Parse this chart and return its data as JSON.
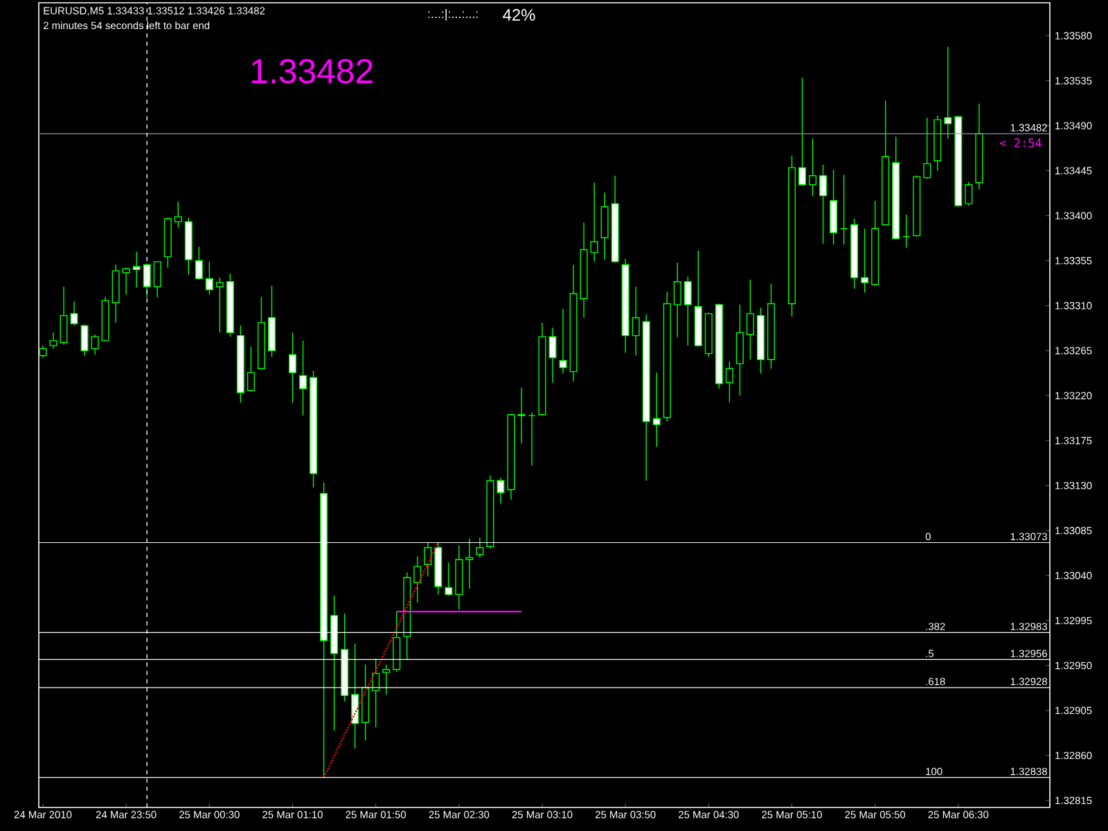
{
  "chart_data": {
    "type": "candlestick",
    "title": "EURUSD,M5  1.33433 1.33512 1.33426 1.33482",
    "subtitle": "2 minutes 54 seconds left to bar end",
    "color": "#00ff00",
    "x": [
      "2010-03-24T23:10",
      "2010-03-24T23:15",
      "2010-03-24T23:20",
      "2010-03-24T23:25",
      "2010-03-24T23:30",
      "2010-03-24T23:35",
      "2010-03-24T23:40",
      "2010-03-24T23:45",
      "2010-03-24T23:50",
      "2010-03-24T23:55",
      "2010-03-25T00:00",
      "2010-03-25T00:05",
      "2010-03-25T00:10",
      "2010-03-25T00:15",
      "2010-03-25T00:20",
      "2010-03-25T00:25",
      "2010-03-25T00:30",
      "2010-03-25T00:35",
      "2010-03-25T00:40",
      "2010-03-25T00:45",
      "2010-03-25T00:50",
      "2010-03-25T00:55",
      "2010-03-25T01:00",
      "2010-03-25T01:10",
      "2010-03-25T01:15",
      "2010-03-25T01:20",
      "2010-03-25T01:25",
      "2010-03-25T01:30",
      "2010-03-25T01:35",
      "2010-03-25T01:40",
      "2010-03-25T01:45",
      "2010-03-25T01:50",
      "2010-03-25T01:55",
      "2010-03-25T02:00",
      "2010-03-25T02:05",
      "2010-03-25T02:10",
      "2010-03-25T02:15",
      "2010-03-25T02:20",
      "2010-03-25T02:25",
      "2010-03-25T02:30",
      "2010-03-25T02:35",
      "2010-03-25T02:40",
      "2010-03-25T02:45",
      "2010-03-25T02:50",
      "2010-03-25T02:55",
      "2010-03-25T03:00",
      "2010-03-25T03:05",
      "2010-03-25T03:10",
      "2010-03-25T03:15",
      "2010-03-25T03:20",
      "2010-03-25T03:25",
      "2010-03-25T03:30",
      "2010-03-25T03:35",
      "2010-03-25T03:40",
      "2010-03-25T03:45",
      "2010-03-25T03:50",
      "2010-03-25T03:55",
      "2010-03-25T04:00",
      "2010-03-25T04:05",
      "2010-03-25T04:10",
      "2010-03-25T04:15",
      "2010-03-25T04:20",
      "2010-03-25T04:25",
      "2010-03-25T04:30",
      "2010-03-25T04:35",
      "2010-03-25T04:40",
      "2010-03-25T04:45",
      "2010-03-25T04:50",
      "2010-03-25T04:55",
      "2010-03-25T05:00",
      "2010-03-25T05:10",
      "2010-03-25T05:15",
      "2010-03-25T05:20",
      "2010-03-25T05:25",
      "2010-03-25T05:30",
      "2010-03-25T05:35",
      "2010-03-25T05:40",
      "2010-03-25T05:45",
      "2010-03-25T05:50",
      "2010-03-25T05:55",
      "2010-03-25T06:00",
      "2010-03-25T06:05",
      "2010-03-25T06:10",
      "2010-03-25T06:15",
      "2010-03-25T06:20",
      "2010-03-25T06:25",
      "2010-03-25T06:30",
      "2010-03-25T06:35",
      "2010-03-25T06:40"
    ],
    "ohlc": [
      [
        1.3326,
        1.3327,
        1.33258,
        1.33267
      ],
      [
        1.3327,
        1.33283,
        1.33267,
        1.33275
      ],
      [
        1.33273,
        1.33329,
        1.33271,
        1.333
      ],
      [
        1.33302,
        1.33314,
        1.3329,
        1.33292
      ],
      [
        1.3329,
        1.33291,
        1.3326,
        1.33265
      ],
      [
        1.33267,
        1.33281,
        1.33261,
        1.33279
      ],
      [
        1.33275,
        1.33319,
        1.33274,
        1.33315
      ],
      [
        1.33313,
        1.33351,
        1.33293,
        1.33345
      ],
      [
        1.33343,
        1.33348,
        1.33321,
        1.33347
      ],
      [
        1.33349,
        1.33364,
        1.33328,
        1.33346
      ],
      [
        1.33351,
        1.33352,
        1.33318,
        1.33329
      ],
      [
        1.33329,
        1.33354,
        1.33318,
        1.33354
      ],
      [
        1.33359,
        1.33398,
        1.33348,
        1.33397
      ],
      [
        1.33394,
        1.33414,
        1.33388,
        1.33399
      ],
      [
        1.33394,
        1.33398,
        1.33341,
        1.33356
      ],
      [
        1.33355,
        1.33369,
        1.33336,
        1.33337
      ],
      [
        1.33337,
        1.33354,
        1.33321,
        1.33326
      ],
      [
        1.33329,
        1.33338,
        1.33283,
        1.33333
      ],
      [
        1.33334,
        1.33342,
        1.33279,
        1.33283
      ],
      [
        1.3328,
        1.3329,
        1.33213,
        1.33223
      ],
      [
        1.33225,
        1.33269,
        1.33224,
        1.33243
      ],
      [
        1.33247,
        1.33319,
        1.33246,
        1.33293
      ],
      [
        1.33298,
        1.3333,
        1.33259,
        1.33265
      ],
      [
        1.33261,
        1.33283,
        1.33213,
        1.33243
      ],
      [
        1.3324,
        1.33275,
        1.332,
        1.33227
      ],
      [
        1.33238,
        1.33245,
        1.33128,
        1.33142
      ],
      [
        1.33122,
        1.33133,
        1.32838,
        1.32975
      ],
      [
        1.33,
        1.3302,
        1.32885,
        1.32962
      ],
      [
        1.32966,
        1.33002,
        1.32914,
        1.3292
      ],
      [
        1.32921,
        1.32972,
        1.32867,
        1.32892
      ],
      [
        1.32893,
        1.32951,
        1.32875,
        1.32928
      ],
      [
        1.32925,
        1.32957,
        1.32888,
        1.32942
      ],
      [
        1.32943,
        1.32951,
        1.32921,
        1.32946
      ],
      [
        1.32946,
        1.33004,
        1.32944,
        1.32978
      ],
      [
        1.32979,
        1.33043,
        1.32956,
        1.33038
      ],
      [
        1.33033,
        1.33059,
        1.33013,
        1.33049
      ],
      [
        1.33051,
        1.33073,
        1.33039,
        1.33068
      ],
      [
        1.33068,
        1.33073,
        1.33021,
        1.33029
      ],
      [
        1.33028,
        1.33053,
        1.3302,
        1.33021
      ],
      [
        1.33021,
        1.3307,
        1.33006,
        1.33056
      ],
      [
        1.33056,
        1.33077,
        1.33027,
        1.33058
      ],
      [
        1.33061,
        1.33078,
        1.33058,
        1.33068
      ],
      [
        1.33069,
        1.3314,
        1.33067,
        1.33135
      ],
      [
        1.33135,
        1.33138,
        1.33112,
        1.33123
      ],
      [
        1.33126,
        1.33202,
        1.33116,
        1.33201
      ],
      [
        1.33201,
        1.33228,
        1.33172,
        1.332
      ],
      [
        1.332,
        1.33203,
        1.3315,
        1.332
      ],
      [
        1.33201,
        1.33293,
        1.332,
        1.33279
      ],
      [
        1.33279,
        1.33288,
        1.33233,
        1.33258
      ],
      [
        1.33255,
        1.33307,
        1.33242,
        1.33248
      ],
      [
        1.33244,
        1.33351,
        1.33234,
        1.33322
      ],
      [
        1.33317,
        1.33393,
        1.33298,
        1.33366
      ],
      [
        1.33363,
        1.33433,
        1.33354,
        1.33374
      ],
      [
        1.33378,
        1.33423,
        1.33356,
        1.33409
      ],
      [
        1.33412,
        1.3344,
        1.33353,
        1.33354
      ],
      [
        1.33351,
        1.33357,
        1.33263,
        1.3328
      ],
      [
        1.3328,
        1.33329,
        1.3326,
        1.33298
      ],
      [
        1.33294,
        1.33301,
        1.33135,
        1.33194
      ],
      [
        1.33197,
        1.33243,
        1.33169,
        1.33191
      ],
      [
        1.33198,
        1.33324,
        1.33194,
        1.33312
      ],
      [
        1.33311,
        1.33353,
        1.33278,
        1.33334
      ],
      [
        1.33334,
        1.33339,
        1.3327,
        1.33311
      ],
      [
        1.33309,
        1.33365,
        1.33269,
        1.3327
      ],
      [
        1.33262,
        1.33303,
        1.33259,
        1.33302
      ],
      [
        1.33311,
        1.33312,
        1.33227,
        1.33232
      ],
      [
        1.33233,
        1.33254,
        1.33213,
        1.33247
      ],
      [
        1.33252,
        1.33311,
        1.3322,
        1.33283
      ],
      [
        1.33281,
        1.33336,
        1.33256,
        1.33302
      ],
      [
        1.333,
        1.33308,
        1.33242,
        1.33256
      ],
      [
        1.33256,
        1.33332,
        1.33247,
        1.33312
      ],
      [
        1.33312,
        1.3346,
        1.33299,
        1.33448
      ],
      [
        1.33448,
        1.33538,
        1.3343,
        1.33431
      ],
      [
        1.33431,
        1.33477,
        1.3342,
        1.3344
      ],
      [
        1.3344,
        1.33451,
        1.33372,
        1.3342
      ],
      [
        1.33415,
        1.33446,
        1.33371,
        1.33383
      ],
      [
        1.33387,
        1.33441,
        1.33371,
        1.33387
      ],
      [
        1.33391,
        1.33397,
        1.33327,
        1.33338
      ],
      [
        1.33338,
        1.33387,
        1.33323,
        1.33333
      ],
      [
        1.33331,
        1.33415,
        1.3333,
        1.33387
      ],
      [
        1.33391,
        1.33515,
        1.3339,
        1.33459
      ],
      [
        1.33453,
        1.33479,
        1.33376,
        1.33377
      ],
      [
        1.33379,
        1.33401,
        1.33368,
        1.33379
      ],
      [
        1.3338,
        1.3344,
        1.33379,
        1.33439
      ],
      [
        1.33438,
        1.33498,
        1.33437,
        1.33452
      ],
      [
        1.33455,
        1.335,
        1.33445,
        1.33496
      ],
      [
        1.33498,
        1.33569,
        1.33477,
        1.33492
      ],
      [
        1.33499,
        1.335,
        1.33409,
        1.3341
      ],
      [
        1.33412,
        1.33434,
        1.3341,
        1.33431
      ],
      [
        1.33433,
        1.33512,
        1.33426,
        1.33482
      ]
    ],
    "series": [
      {
        "type": "line",
        "color": "#ff00ff",
        "x": [
          "2010-03-25T02:00",
          "2010-03-25T03:00"
        ],
        "values": [
          1.33004,
          1.33004
        ]
      },
      {
        "type": "line",
        "color": "#ff0000",
        "line_style": "dotted",
        "x": [
          "2010-03-25T01:25",
          "2010-03-25T02:20"
        ],
        "values": [
          1.32838,
          1.33073
        ]
      }
    ],
    "xlim": [
      "2010-03-24T23:08",
      "2010-03-25T07:14"
    ],
    "xticks": [
      {
        "value": "2010-03-24T23:10",
        "label": "24 Mar 2010"
      },
      {
        "value": "2010-03-24T23:50",
        "label": "24 Mar 23:50"
      },
      {
        "value": "2010-03-25T00:30",
        "label": "25 Mar 00:30"
      },
      {
        "value": "2010-03-25T01:10",
        "label": "25 Mar 01:10"
      },
      {
        "value": "2010-03-25T01:50",
        "label": "25 Mar 01:50"
      },
      {
        "value": "2010-03-25T02:30",
        "label": "25 Mar 02:30"
      },
      {
        "value": "2010-03-25T03:10",
        "label": "25 Mar 03:10"
      },
      {
        "value": "2010-03-25T03:50",
        "label": "25 Mar 03:50"
      },
      {
        "value": "2010-03-25T04:30",
        "label": "25 Mar 04:30"
      },
      {
        "value": "2010-03-25T05:10",
        "label": "25 Mar 05:10"
      },
      {
        "value": "2010-03-25T05:50",
        "label": "25 Mar 05:50"
      },
      {
        "value": "2010-03-25T06:30",
        "label": "25 Mar 06:30"
      }
    ],
    "ylim": [
      1.32808,
      1.33613
    ],
    "yticks": [
      {
        "value": 1.32815,
        "label": "1.32815"
      },
      {
        "value": 1.3286,
        "label": "1.32860"
      },
      {
        "value": 1.32905,
        "label": "1.32905"
      },
      {
        "value": 1.3295,
        "label": "1.32950"
      },
      {
        "value": 1.32995,
        "label": "1.32995"
      },
      {
        "value": 1.3304,
        "label": "1.33040"
      },
      {
        "value": 1.33085,
        "label": "1.33085"
      },
      {
        "value": 1.3313,
        "label": "1.33130"
      },
      {
        "value": 1.33175,
        "label": "1.33175"
      },
      {
        "value": 1.3322,
        "label": "1.33220"
      },
      {
        "value": 1.33265,
        "label": "1.33265"
      },
      {
        "value": 1.3331,
        "label": "1.33310"
      },
      {
        "value": 1.33355,
        "label": "1.33355"
      },
      {
        "value": 1.334,
        "label": "1.33400"
      },
      {
        "value": 1.33445,
        "label": "1.33445"
      },
      {
        "value": 1.3349,
        "label": "1.33490"
      },
      {
        "value": 1.33535,
        "label": "1.33535"
      },
      {
        "value": 1.3358,
        "label": "1.33580"
      }
    ],
    "ref_lines": [
      {
        "axis": "y",
        "value": 1.33482,
        "label": "1.33482",
        "color": "#8c9aa8"
      },
      {
        "axis": "y",
        "value": 1.33073,
        "label": "1.33073",
        "color": "#ffffff"
      },
      {
        "axis": "y",
        "value": 1.32983,
        "label": "1.32983",
        "color": "#ffffff"
      },
      {
        "axis": "y",
        "value": 1.32956,
        "label": "1.32956",
        "color": "#ffffff"
      },
      {
        "axis": "y",
        "value": 1.32928,
        "label": "1.32928",
        "color": "#ffffff"
      },
      {
        "axis": "y",
        "value": 1.32838,
        "label": "1.32838",
        "color": "#ffffff"
      },
      {
        "axis": "x",
        "value": "2010-03-25T00:00",
        "color": "#ffffff",
        "line_style": "dashed"
      }
    ],
    "annotations": [
      "1.33482",
      "< 2:54",
      ":...:|:...:...:",
      "42%",
      {
        "text": "0",
        "x": "2010-03-25T06:13",
        "y": 1.33073
      },
      {
        "text": ".382",
        "x": "2010-03-25T06:13",
        "y": 1.32983
      },
      {
        "text": ".5",
        "x": "2010-03-25T06:13",
        "y": 1.32956
      },
      {
        "text": ".618",
        "x": "2010-03-25T06:13",
        "y": 1.32928
      },
      {
        "text": "100",
        "x": "2010-03-25T06:13",
        "y": 1.32838
      }
    ]
  }
}
